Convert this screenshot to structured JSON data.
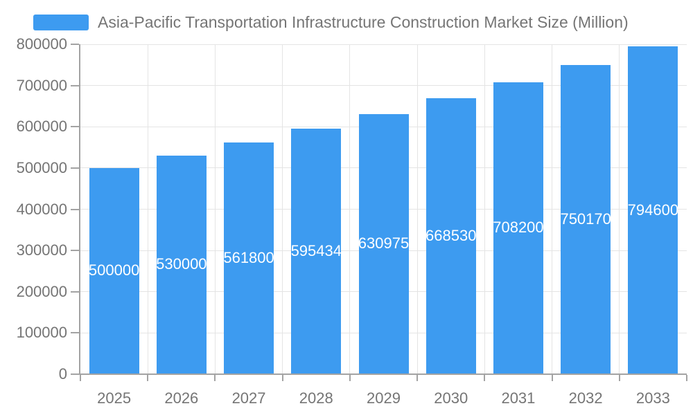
{
  "legend": {
    "label": "Asia-Pacific Transportation Infrastructure Construction Market Size (Million)"
  },
  "chart_data": {
    "type": "bar",
    "title": "Asia-Pacific Transportation Infrastructure Construction Market Size (Million)",
    "categories": [
      "2025",
      "2026",
      "2027",
      "2028",
      "2029",
      "2030",
      "2031",
      "2032",
      "2033"
    ],
    "values": [
      500000,
      530000,
      561800,
      595434,
      630975,
      668530,
      708200,
      750170,
      794600
    ],
    "bar_labels": [
      "500000",
      "530000",
      "561800",
      "595434",
      "630975",
      "668530",
      "708200",
      "750170",
      "794600"
    ],
    "xlabel": "",
    "ylabel": "",
    "ylim": [
      0,
      800000
    ],
    "yticks": [
      0,
      100000,
      200000,
      300000,
      400000,
      500000,
      600000,
      700000,
      800000
    ],
    "ytick_labels": [
      "0",
      "100000",
      "200000",
      "300000",
      "400000",
      "500000",
      "600000",
      "700000",
      "800000"
    ],
    "grid": true,
    "legend_position": "top-left",
    "bar_label_position": "inside-center",
    "colors": {
      "bar": "#3D9BF0",
      "bar_label": "#ffffff",
      "axis_text": "#757575",
      "legend_text": "#757575",
      "axis_line": "#A3A3A3",
      "gridline": "#E4E4E4",
      "background": "#ffffff"
    }
  }
}
